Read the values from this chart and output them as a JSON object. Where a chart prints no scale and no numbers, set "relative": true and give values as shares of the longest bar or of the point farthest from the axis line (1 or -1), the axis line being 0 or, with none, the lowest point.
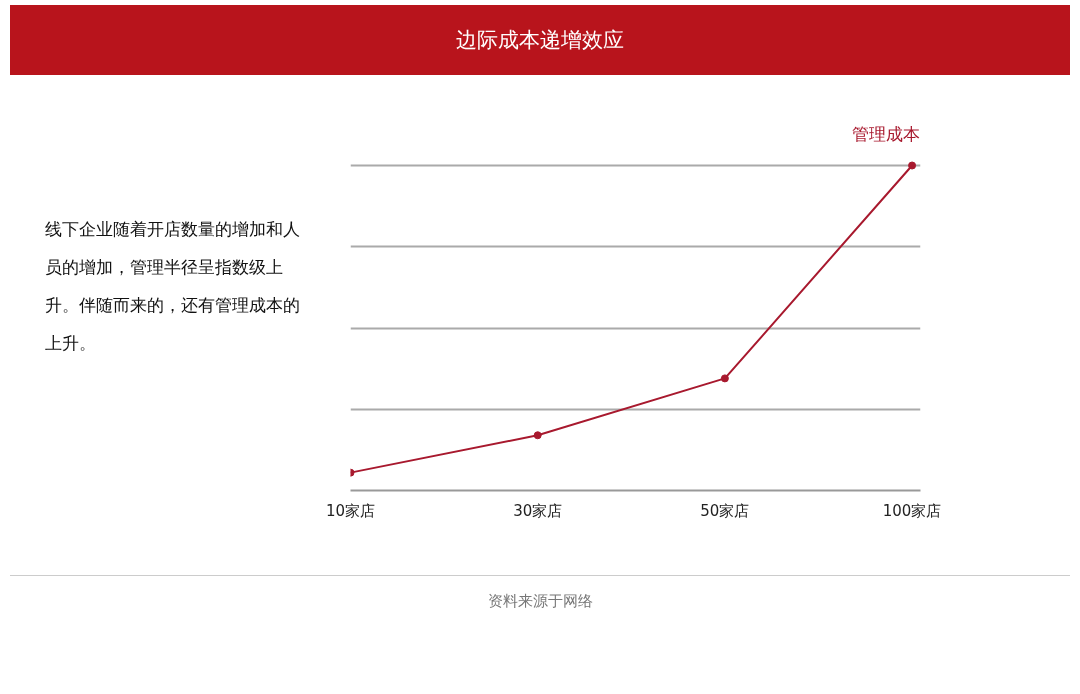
{
  "chart_data": {
    "type": "line",
    "title": "边际成本递增效应",
    "relative": true,
    "categories": [
      "10家店",
      "30家店",
      "50家店",
      "100家店"
    ],
    "series": [
      {
        "name": "管理成本",
        "color": "#a8192e",
        "values": [
          0.055,
          0.17,
          0.345,
          1
        ]
      }
    ],
    "marker": "circle",
    "grid": "y",
    "annotations": [
      "线下企业随着开店数量的增加和人员的增加，管理半径呈指数级上升。伴随而来的，还有管理成本的上升。",
      "资料来源于网络"
    ]
  }
}
